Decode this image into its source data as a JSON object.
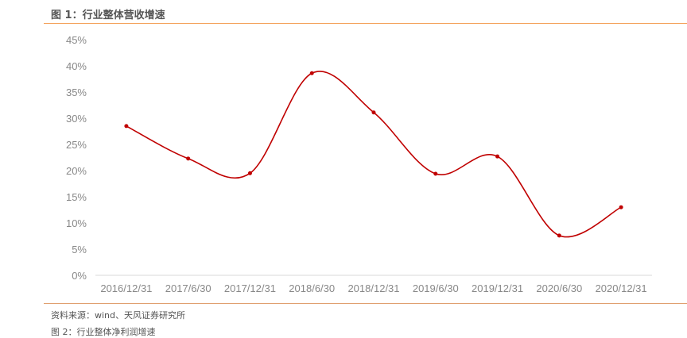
{
  "figure_title": "图 1：行业整体营收增速",
  "source": "资料来源：wind、天风证券研究所",
  "next_caption": "图 2：行业整体净利润增速",
  "chart_data": {
    "type": "line",
    "title": "",
    "xlabel": "",
    "ylabel": "",
    "categories": [
      "2016/12/31",
      "2017/6/30",
      "2017/12/31",
      "2018/6/30",
      "2018/12/31",
      "2019/6/30",
      "2019/12/31",
      "2020/6/30",
      "2020/12/31"
    ],
    "series": [
      {
        "values": [
          28.5,
          22.3,
          19.5,
          38.6,
          31.1,
          19.4,
          22.7,
          7.6,
          13.0
        ],
        "color": "#c00000",
        "smooth": true
      }
    ],
    "yticks": [
      "0%",
      "5%",
      "10%",
      "15%",
      "20%",
      "25%",
      "30%",
      "35%",
      "40%",
      "45%"
    ],
    "ylim": [
      0,
      45
    ],
    "grid": false,
    "legend": "none"
  }
}
